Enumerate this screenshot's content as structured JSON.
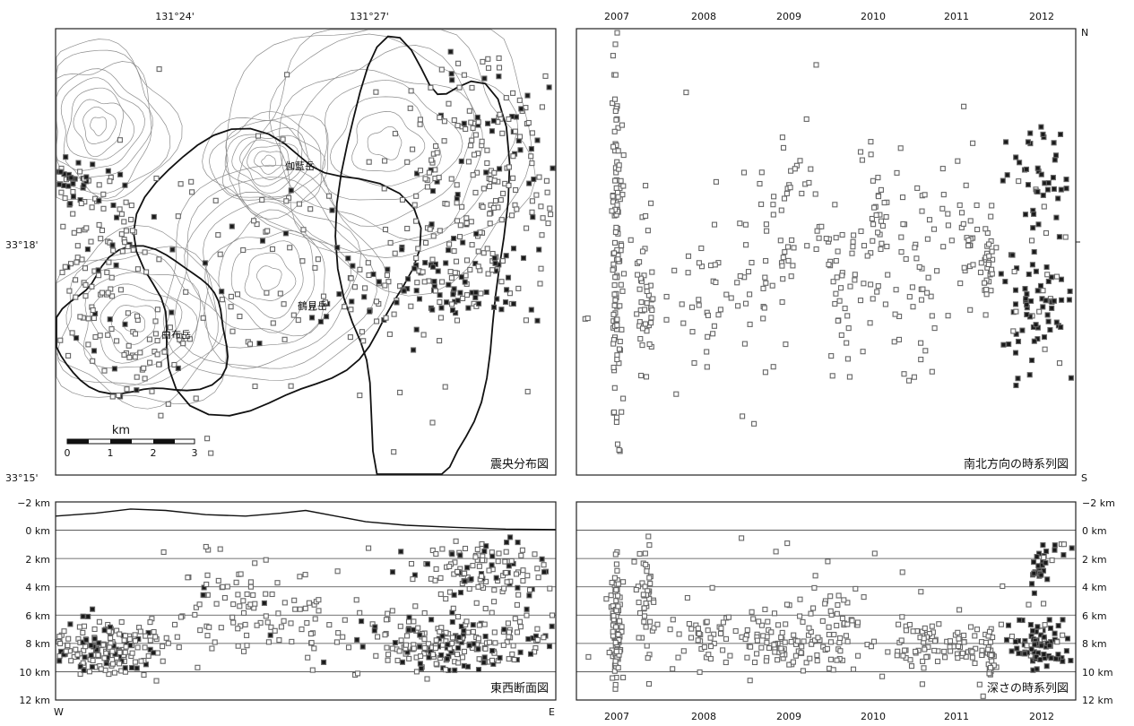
{
  "colors": {
    "quake_old": "#666666",
    "quake_new": "#1a1a1a",
    "frame": "#222222",
    "contour": "#8c8c8c",
    "coast": "#111111"
  },
  "chart_data": [
    {
      "type": "scatter",
      "panel": "epicenter-map",
      "title": "震央分布図",
      "x_ticks": [
        "131°24'",
        "131°27'"
      ],
      "y_ticks": [
        "33°18'",
        "33°15'"
      ],
      "places": [
        "伽藍岳",
        "鶴見岳",
        "由布岳"
      ],
      "scale_bar": {
        "unit": "km",
        "ticks": [
          "0",
          "1",
          "2",
          "3"
        ]
      },
      "legend": "none",
      "grid": false
    },
    {
      "type": "scatter",
      "panel": "north-south-time-series",
      "title": "南北方向の時系列図",
      "x_ticks": [
        "2007",
        "2008",
        "2009",
        "2010",
        "2011",
        "2012"
      ],
      "y_ends": [
        "N",
        "S"
      ],
      "grid": false
    },
    {
      "type": "scatter",
      "panel": "east-west-cross-section",
      "title": "東西断面図",
      "y_ticks": [
        "−2 km",
        "0 km",
        "2 km",
        "4 km",
        "6 km",
        "8 km",
        "10 km",
        "12 km"
      ],
      "ylim": [
        -2,
        12
      ],
      "x_ends": [
        "W",
        "E"
      ],
      "grid": true
    },
    {
      "type": "scatter",
      "panel": "depth-time-series",
      "title": "深さの時系列図",
      "x_ticks": [
        "2007",
        "2008",
        "2009",
        "2010",
        "2011",
        "2012"
      ],
      "y_ticks": [
        "−2 km",
        "0 km",
        "2 km",
        "4 km",
        "6 km",
        "8 km",
        "10 km",
        "12 km"
      ],
      "ylim": [
        -2,
        12
      ],
      "grid": true
    }
  ]
}
